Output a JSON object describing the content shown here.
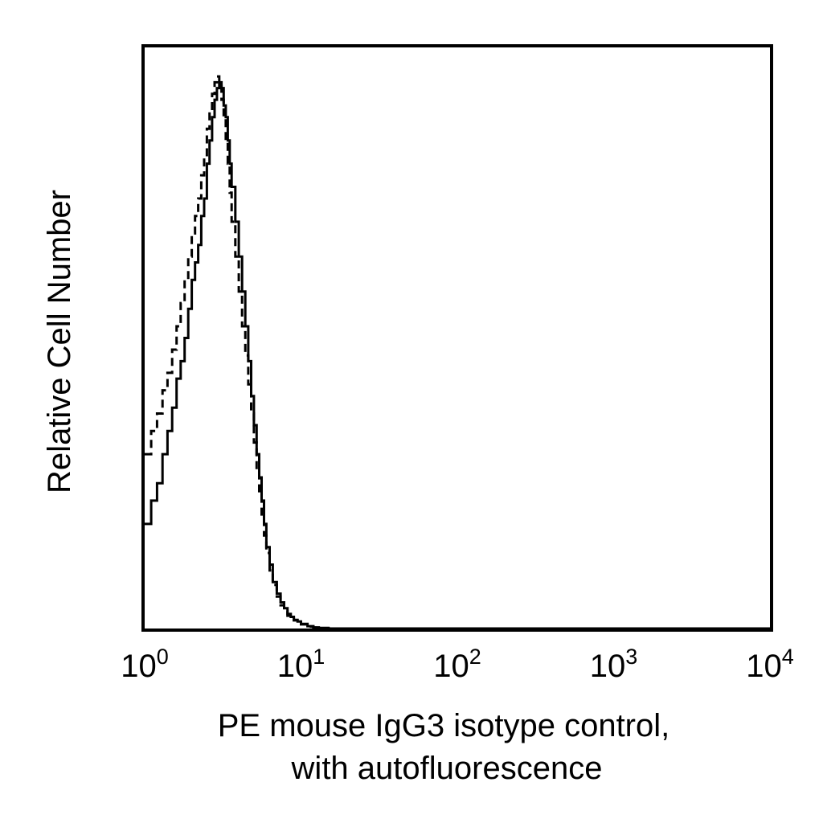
{
  "chart_data": {
    "type": "line",
    "title": "",
    "xlabel_lines": [
      "PE mouse IgG3 isotype control,",
      "with autofluorescence"
    ],
    "ylabel": "Relative Cell Number",
    "x_scale": "log",
    "xlim": [
      1,
      10000
    ],
    "ylim": [
      0,
      100
    ],
    "x_ticks": [
      {
        "base": "10",
        "exp": "0",
        "value": 1
      },
      {
        "base": "10",
        "exp": "1",
        "value": 10
      },
      {
        "base": "10",
        "exp": "2",
        "value": 100
      },
      {
        "base": "10",
        "exp": "3",
        "value": 1000
      },
      {
        "base": "10",
        "exp": "4",
        "value": 10000
      }
    ],
    "grid": false,
    "legend": "none",
    "series": [
      {
        "style": "solid",
        "color": "#000000",
        "x": [
          1.0,
          1.1,
          1.2,
          1.3,
          1.4,
          1.5,
          1.6,
          1.7,
          1.8,
          1.9,
          2.0,
          2.1,
          2.2,
          2.3,
          2.4,
          2.5,
          2.6,
          2.7,
          2.8,
          2.9,
          3.0,
          3.1,
          3.2,
          3.3,
          3.4,
          3.5,
          3.6,
          3.8,
          4.0,
          4.2,
          4.4,
          4.6,
          4.8,
          5.0,
          5.2,
          5.4,
          5.6,
          5.8,
          6.0,
          6.3,
          6.6,
          7.0,
          7.4,
          7.8,
          8.2,
          8.6,
          9.0,
          9.5,
          10.0,
          11.0,
          12.0,
          13.0,
          15.0,
          20.0,
          30.0,
          100.0,
          1000.0,
          10000.0
        ],
        "y": [
          18,
          22,
          25,
          30,
          34,
          38,
          43,
          46,
          50,
          55,
          60,
          63,
          66,
          71,
          74,
          80,
          84,
          88,
          91,
          93,
          94,
          93,
          90,
          88,
          84,
          80,
          76,
          70,
          64,
          58,
          52,
          46,
          40,
          35,
          30,
          26,
          22,
          18,
          14,
          11,
          8,
          6,
          4.5,
          3.5,
          2.5,
          2,
          1.5,
          1.2,
          0.8,
          0.4,
          0.2,
          0.1,
          0,
          0,
          0,
          0,
          0,
          0
        ]
      },
      {
        "style": "dashed",
        "color": "#000000",
        "x": [
          1.0,
          1.1,
          1.2,
          1.3,
          1.4,
          1.5,
          1.6,
          1.7,
          1.8,
          1.9,
          2.0,
          2.1,
          2.2,
          2.3,
          2.4,
          2.5,
          2.6,
          2.7,
          2.8,
          2.9,
          3.0,
          3.1,
          3.2,
          3.3,
          3.4,
          3.5,
          3.6,
          3.8,
          4.0,
          4.2,
          4.4,
          4.6,
          4.8,
          5.0,
          5.2,
          5.4,
          5.6,
          5.8,
          6.0,
          6.3,
          6.6,
          7.0,
          7.4,
          7.8,
          8.2,
          8.6,
          9.0,
          9.5,
          10.0,
          11.0,
          12.0,
          13.0,
          15.0,
          20.0,
          30.0,
          100.0,
          1000.0,
          10000.0
        ],
        "y": [
          30,
          34,
          37,
          41,
          44,
          48,
          52,
          56,
          60,
          64,
          68,
          71,
          74,
          78,
          81,
          86,
          89,
          92,
          94,
          95,
          94,
          91,
          88,
          84,
          80,
          75,
          70,
          64,
          58,
          52,
          47,
          42,
          37,
          32,
          27,
          23,
          19,
          16,
          13,
          10,
          7.5,
          5.5,
          4,
          3,
          2.2,
          1.8,
          1.4,
          1,
          0.7,
          0.3,
          0.15,
          0.05,
          0,
          0,
          0,
          0,
          0,
          0
        ]
      }
    ]
  }
}
